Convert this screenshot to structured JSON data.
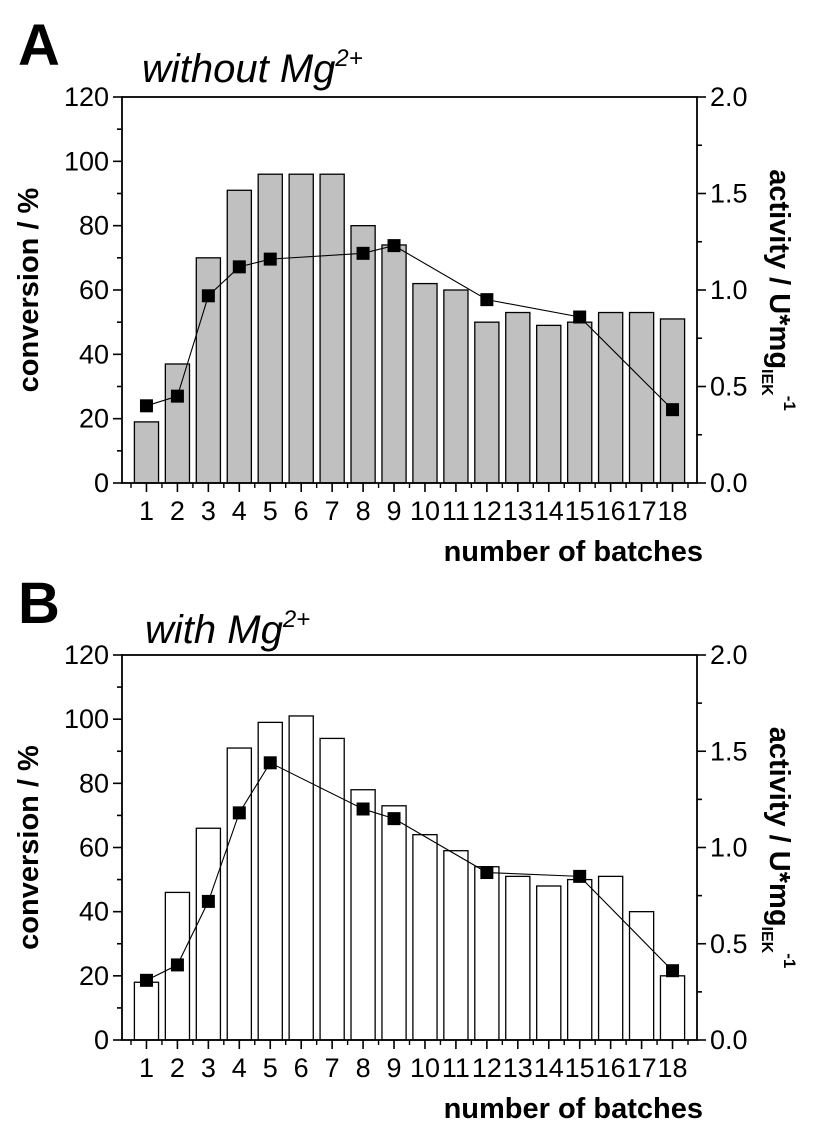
{
  "chart_data": [
    {
      "type": "bar",
      "panel_letter": "A",
      "title": "without Mg",
      "title_superscript": "2+",
      "bar_fill": "#c0c0c0",
      "categories": [
        "1",
        "2",
        "3",
        "4",
        "5",
        "6",
        "7",
        "8",
        "9",
        "10",
        "11",
        "12",
        "13",
        "14",
        "15",
        "16",
        "17",
        "18"
      ],
      "xlabel": "number of batches",
      "ylabel": "conversion / %",
      "ylim": [
        0,
        120
      ],
      "yticks": [
        "0",
        "20",
        "40",
        "60",
        "80",
        "100",
        "120"
      ],
      "y2label": "activity / U*mg",
      "y2label_subscript": "IEK",
      "y2label_superscript": "-1",
      "y2lim": [
        0,
        2.0
      ],
      "y2ticks": [
        "0.0",
        "0.5",
        "1.0",
        "1.5",
        "2.0"
      ],
      "series": [
        {
          "name": "conversion",
          "axis": "left",
          "kind": "bar",
          "values": [
            19,
            37,
            70,
            91,
            96,
            96,
            96,
            80,
            74,
            62,
            60,
            50,
            53,
            49,
            50,
            53,
            53,
            51
          ]
        },
        {
          "name": "activity",
          "axis": "right",
          "kind": "line-square",
          "x": [
            1,
            2,
            3,
            4,
            5,
            8,
            9,
            12,
            15,
            18
          ],
          "values": [
            0.4,
            0.45,
            0.97,
            1.12,
            1.16,
            1.19,
            1.23,
            0.95,
            0.86,
            0.38
          ]
        }
      ]
    },
    {
      "type": "bar",
      "panel_letter": "B",
      "title": "with Mg",
      "title_superscript": "2+",
      "bar_fill": "#ffffff",
      "categories": [
        "1",
        "2",
        "3",
        "4",
        "5",
        "6",
        "7",
        "8",
        "9",
        "10",
        "11",
        "12",
        "13",
        "14",
        "15",
        "16",
        "17",
        "18"
      ],
      "xlabel": "number of batches",
      "ylabel": "conversion / %",
      "ylim": [
        0,
        120
      ],
      "yticks": [
        "0",
        "20",
        "40",
        "60",
        "80",
        "100",
        "120"
      ],
      "y2label": "activity / U*mg",
      "y2label_subscript": "IEK",
      "y2label_superscript": "-1",
      "y2lim": [
        0,
        2.0
      ],
      "y2ticks": [
        "0.0",
        "0.5",
        "1.0",
        "1.5",
        "2.0"
      ],
      "series": [
        {
          "name": "conversion",
          "axis": "left",
          "kind": "bar",
          "values": [
            18,
            46,
            66,
            91,
            99,
            101,
            94,
            78,
            73,
            64,
            59,
            54,
            51,
            48,
            50,
            51,
            40,
            20
          ]
        },
        {
          "name": "activity",
          "axis": "right",
          "kind": "line-square",
          "x": [
            1,
            2,
            3,
            4,
            5,
            8,
            9,
            12,
            15,
            18
          ],
          "values": [
            0.31,
            0.39,
            0.72,
            1.18,
            1.44,
            1.2,
            1.15,
            0.87,
            0.85,
            0.36
          ]
        }
      ]
    }
  ]
}
